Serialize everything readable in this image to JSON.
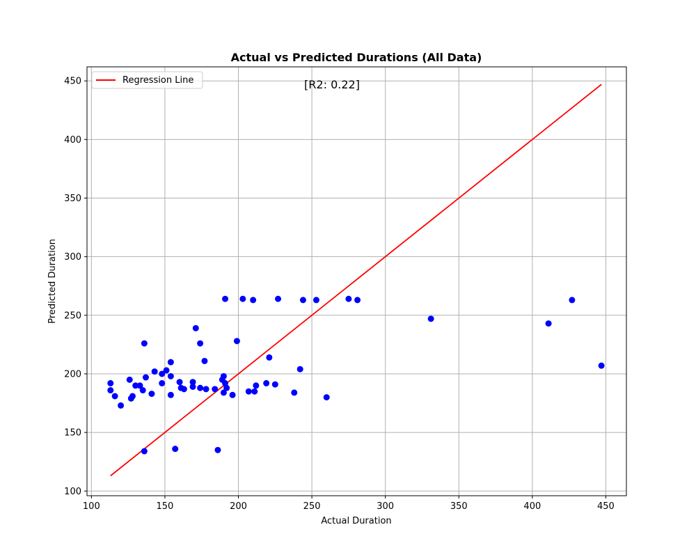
{
  "chart_data": {
    "type": "scatter",
    "title": "Actual vs Predicted Durations (All Data)",
    "xlabel": "Actual Duration",
    "ylabel": "Predicted Duration",
    "xlim": [
      97,
      464
    ],
    "ylim": [
      96,
      462
    ],
    "xticks": [
      100,
      150,
      200,
      250,
      300,
      350,
      400,
      450
    ],
    "yticks": [
      100,
      150,
      200,
      250,
      300,
      350,
      400,
      450
    ],
    "grid": true,
    "legend": {
      "placement": "upper-left",
      "entries": [
        "Regression Line"
      ]
    },
    "annotation": "[R2: 0.22]",
    "point_color": "#0000ff",
    "line_color": "#ff0000",
    "series": [
      {
        "kind": "points",
        "x": [
          113,
          113,
          116,
          120,
          126,
          127,
          128,
          130,
          133,
          135,
          136,
          136,
          137,
          141,
          143,
          148,
          148,
          151,
          154,
          154,
          154,
          157,
          160,
          161,
          163,
          169,
          169,
          171,
          174,
          174,
          177,
          178,
          184,
          186,
          189,
          190,
          190,
          191,
          191,
          192,
          196,
          199,
          203,
          207,
          210,
          211,
          212,
          219,
          221,
          225,
          227,
          238,
          242,
          244,
          253,
          260,
          275,
          281,
          331,
          411,
          427,
          447
        ],
        "y": [
          192,
          186,
          181,
          173,
          195,
          179,
          181,
          190,
          190,
          186,
          226,
          134,
          197,
          183,
          202,
          192,
          200,
          203,
          210,
          198,
          182,
          136,
          193,
          188,
          187,
          193,
          189,
          239,
          188,
          226,
          211,
          187,
          187,
          135,
          195,
          198,
          184,
          264,
          192,
          188,
          182,
          228,
          264,
          185,
          263,
          185,
          190,
          192,
          214,
          191,
          264,
          184,
          204,
          263,
          263,
          180,
          264,
          263,
          247,
          243,
          263,
          207
        ]
      },
      {
        "kind": "line",
        "name": "Regression Line",
        "x": [
          113,
          447
        ],
        "y": [
          113,
          447
        ]
      }
    ]
  }
}
